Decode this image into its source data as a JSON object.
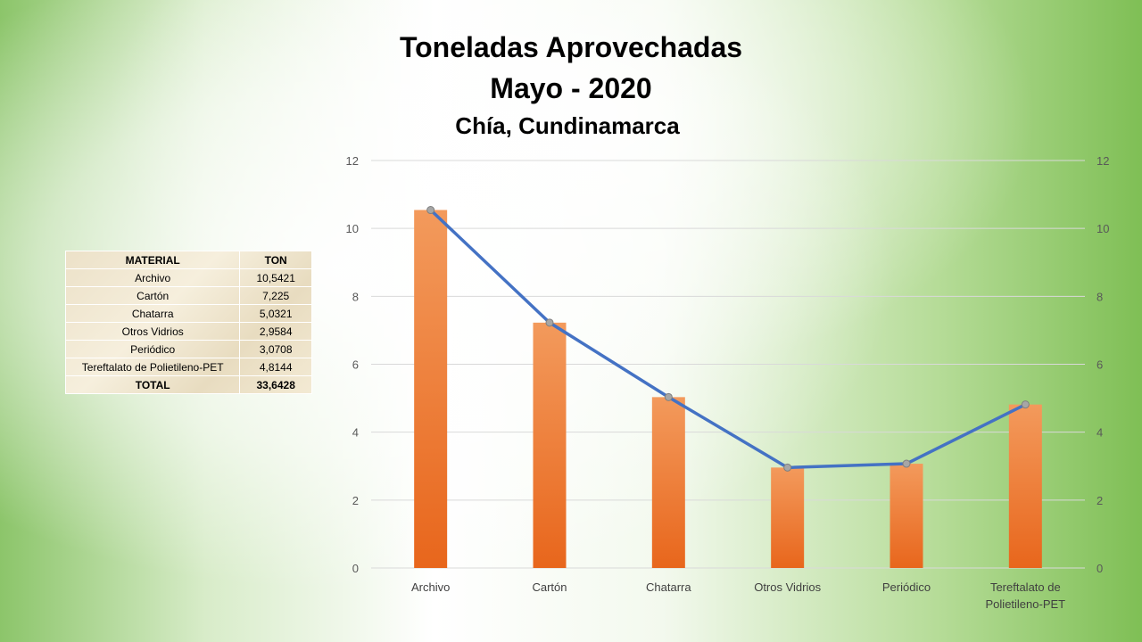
{
  "title": {
    "line1": "Toneladas Aprovechadas",
    "line2": "Mayo - 2020"
  },
  "subtitle": "Chía, Cundinamarca",
  "table": {
    "headers": [
      "MATERIAL",
      "TON"
    ],
    "rows": [
      [
        "Archivo",
        "10,5421"
      ],
      [
        "Cartón",
        "7,225"
      ],
      [
        "Chatarra",
        "5,0321"
      ],
      [
        "Otros Vidrios",
        "2,9584"
      ],
      [
        "Periódico",
        "3,0708"
      ],
      [
        "Tereftalato de Polietileno-PET",
        "4,8144"
      ]
    ],
    "total_label": "TOTAL",
    "total_value": "33,6428"
  },
  "chart_data": {
    "type": "bar",
    "categories": [
      "Archivo",
      "Cartón",
      "Chatarra",
      "Otros Vidrios",
      "Periódico",
      "Tereftalato de Polietileno-PET"
    ],
    "category_lines": [
      [
        "Archivo"
      ],
      [
        "Cartón"
      ],
      [
        "Chatarra"
      ],
      [
        "Otros Vidrios"
      ],
      [
        "Periódico"
      ],
      [
        "Tereftalato de",
        "Polietileno-PET"
      ]
    ],
    "series": [
      {
        "type": "bar",
        "values": [
          10.5421,
          7.225,
          5.0321,
          2.9584,
          3.0708,
          4.8144
        ]
      },
      {
        "type": "line",
        "axis": "secondary",
        "values": [
          10.5421,
          7.225,
          5.0321,
          2.9584,
          3.0708,
          4.8144
        ]
      }
    ],
    "ylim": [
      0,
      12
    ],
    "y_ticks": [
      0,
      2,
      4,
      6,
      8,
      10,
      12
    ],
    "y2lim": [
      0,
      12
    ],
    "y2_ticks": [
      0,
      2,
      4,
      6,
      8,
      10,
      12
    ],
    "grid": true,
    "colors": {
      "bar_top": "#f39a5c",
      "bar_bottom": "#e8661c",
      "line": "#4472c4",
      "marker": "#a6a6a6",
      "grid": "#d9d9d9"
    }
  }
}
